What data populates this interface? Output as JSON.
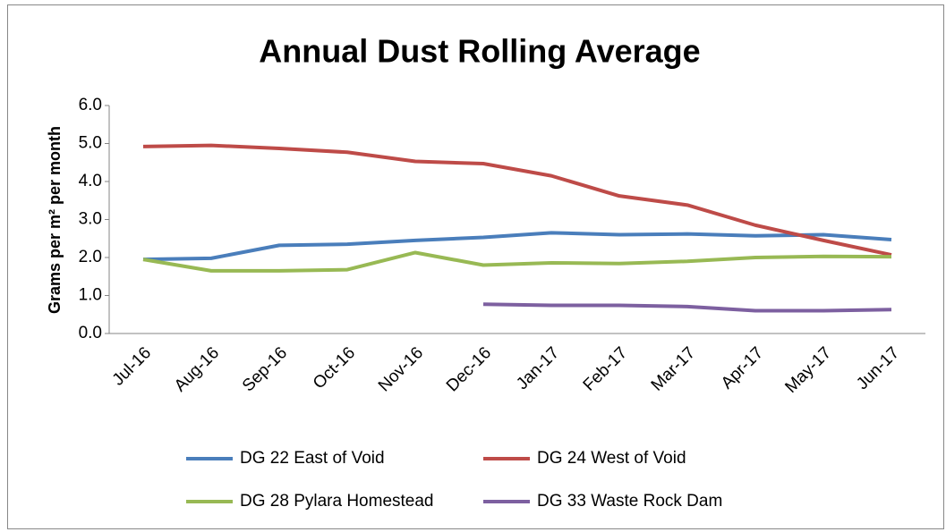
{
  "chart_data": {
    "type": "line",
    "title": "Annual Dust Rolling Average",
    "y_label": "Grams per m² per month",
    "categories": [
      "Jul-16",
      "Aug-16",
      "Sep-16",
      "Oct-16",
      "Nov-16",
      "Dec-16",
      "Jan-17",
      "Feb-17",
      "Mar-17",
      "Apr-17",
      "May-17",
      "Jun-17"
    ],
    "ylim": [
      0,
      6
    ],
    "yticks": [
      {
        "value": 0,
        "label": "0.0"
      },
      {
        "value": 1,
        "label": "1.0"
      },
      {
        "value": 2,
        "label": "2.0"
      },
      {
        "value": 3,
        "label": "3.0"
      },
      {
        "value": 4,
        "label": "4.0"
      },
      {
        "value": 5,
        "label": "5.0"
      },
      {
        "value": 6,
        "label": "6.0"
      }
    ],
    "grid": false,
    "series": [
      {
        "name": "DG 22 East of Void",
        "color": "#4a7ebb",
        "values": [
          1.95,
          1.98,
          2.32,
          2.35,
          2.45,
          2.53,
          2.65,
          2.6,
          2.62,
          2.57,
          2.6,
          2.47
        ]
      },
      {
        "name": "DG 24 West of Void",
        "color": "#be4b48",
        "values": [
          4.92,
          4.95,
          4.87,
          4.77,
          4.53,
          4.47,
          4.15,
          3.62,
          3.38,
          2.85,
          2.45,
          2.07
        ]
      },
      {
        "name": "DG 28 Pylara Homestead",
        "color": "#98b954",
        "values": [
          1.95,
          1.65,
          1.65,
          1.68,
          2.13,
          1.8,
          1.86,
          1.84,
          1.9,
          2.0,
          2.03,
          2.02
        ]
      },
      {
        "name": "DG 33 Waste Rock Dam",
        "color": "#7d60a0",
        "values": [
          null,
          null,
          null,
          null,
          null,
          0.77,
          0.74,
          0.74,
          0.71,
          0.6,
          0.6,
          0.63
        ]
      }
    ]
  }
}
